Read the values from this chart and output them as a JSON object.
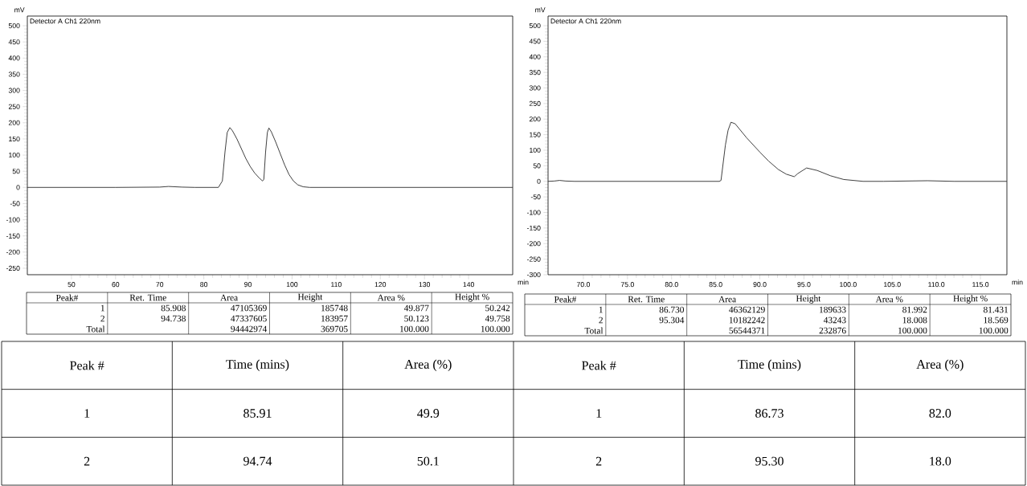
{
  "chart_data": [
    {
      "type": "line",
      "xlabel": "min",
      "ylabel": "mV",
      "color": "#333333",
      "x": [
        40,
        60,
        70,
        72,
        75,
        78,
        83.3,
        84.2,
        84.8,
        85.3,
        85.9,
        86.5,
        87.5,
        88.5,
        89.5,
        90.5,
        91.5,
        92.5,
        93.3,
        93.6,
        94.0,
        94.4,
        94.74,
        95.3,
        96.3,
        97.3,
        98.3,
        99.3,
        100.3,
        101.3,
        102.5,
        104,
        150
      ],
      "values": [
        0,
        0,
        1,
        3,
        1,
        0,
        0,
        20,
        110,
        170,
        185,
        175,
        150,
        120,
        90,
        65,
        45,
        30,
        20,
        25,
        110,
        170,
        184,
        172,
        140,
        105,
        70,
        40,
        20,
        8,
        2,
        0,
        0
      ],
      "xlim": [
        40,
        150
      ],
      "ylim": [
        -270,
        530
      ],
      "xticks": [
        50,
        60,
        70,
        80,
        90,
        100,
        110,
        120,
        130,
        140
      ],
      "yticks": [
        -250,
        -200,
        -150,
        -100,
        -50,
        0,
        50,
        100,
        150,
        200,
        250,
        300,
        350,
        400,
        450,
        500
      ],
      "annotations": [
        "Detector A Ch1 220nm",
        "Peak#",
        "Ret. Time",
        "Area",
        "Height",
        "Area %",
        "Height %",
        "1",
        "85.908",
        "47105369",
        "185748",
        "49.877",
        "50.242",
        "2",
        "94.738",
        "47337605",
        "183957",
        "50.123",
        "49.758",
        "Total",
        "94442974",
        "369705",
        "100.000",
        "100.000"
      ]
    },
    {
      "type": "line",
      "xlabel": "min",
      "ylabel": "mV",
      "color": "#333333",
      "x": [
        66,
        66.7,
        67.3,
        68,
        69,
        85.4,
        85.6,
        86.1,
        86.4,
        86.73,
        87.2,
        88.5,
        90,
        91,
        92.1,
        93,
        93.9,
        94.3,
        95.3,
        96.5,
        98,
        99.5,
        101.7,
        104,
        109,
        112,
        118
      ],
      "values": [
        0,
        1,
        3,
        1,
        0,
        0,
        3,
        117,
        164,
        190,
        185,
        140,
        94,
        65,
        38,
        23,
        15,
        25,
        43,
        35,
        18,
        6,
        0,
        0,
        2,
        0,
        0
      ],
      "xlim": [
        66,
        118
      ],
      "ylim": [
        -300,
        531
      ],
      "xticks": [
        {
          "value": 70,
          "label": "70.0"
        },
        {
          "value": 75,
          "label": "75.0"
        },
        {
          "value": 80,
          "label": "80.0"
        },
        {
          "value": 85,
          "label": "85.0"
        },
        {
          "value": 90,
          "label": "90.0"
        },
        {
          "value": 95,
          "label": "95.0"
        },
        {
          "value": 100,
          "label": "100.0"
        },
        {
          "value": 105,
          "label": "105.0"
        },
        {
          "value": 110,
          "label": "110.0"
        },
        {
          "value": 115,
          "label": "115.0"
        }
      ],
      "yticks": [
        -300,
        -250,
        -200,
        -150,
        -100,
        -50,
        0,
        50,
        100,
        150,
        200,
        250,
        300,
        350,
        400,
        450,
        500
      ],
      "annotations": [
        "Detector A Ch1 220nm",
        "Peak#",
        "Ret. Time",
        "Area",
        "Height",
        "Area %",
        "Height %",
        "1",
        "86.730",
        "46362129",
        "189633",
        "81.992",
        "81.431",
        "2",
        "95.304",
        "10182242",
        "43243",
        "18.008",
        "18.569",
        "Total",
        "56544371",
        "232876",
        "100.000",
        "100.000"
      ]
    },
    {
      "type": "other",
      "annotations": [
        "Peak #",
        "Time (mins)",
        "Area (%)",
        "Peak #",
        "Time (mins)",
        "Area (%)",
        "1",
        "85.91",
        "49.9",
        "1",
        "86.73",
        "82.0",
        "2",
        "94.74",
        "50.1",
        "2",
        "95.30",
        "18.0"
      ]
    }
  ]
}
